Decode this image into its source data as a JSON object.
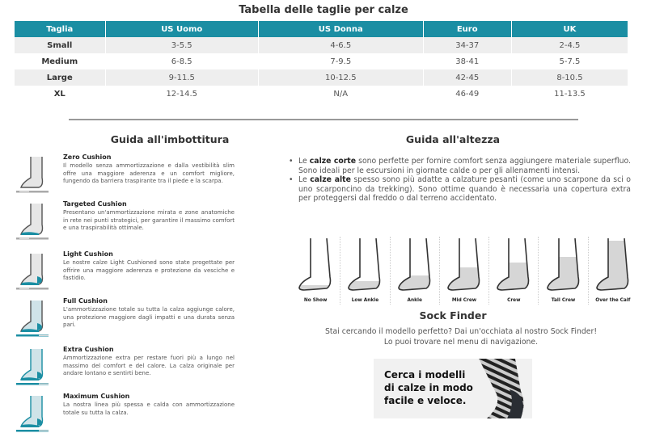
{
  "title": "Tabella delle taglie per calze",
  "table": {
    "headers": [
      "Taglia",
      "US Uomo",
      "US Donna",
      "Euro",
      "UK"
    ],
    "rows": [
      [
        "Small",
        "3-5.5",
        "4-6.5",
        "34-37",
        "2-4.5"
      ],
      [
        "Medium",
        "6-8.5",
        "7-9.5",
        "38-41",
        "5-7.5"
      ],
      [
        "Large",
        "9-11.5",
        "10-12.5",
        "42-45",
        "8-10.5"
      ],
      [
        "XL",
        "12-14.5",
        "N/A",
        "46-49",
        "11-13.5"
      ]
    ]
  },
  "colors": {
    "accent": "#1b8ea3",
    "sock_fill": "#d6d6d6",
    "cushion": "#1b8ea3"
  },
  "cushion": {
    "title": "Guida all'imbottitura",
    "items": [
      {
        "name": "Zero Cushion",
        "desc": "Il modello senza ammortizzazione e dalla vestibilità slim offre una maggiore aderenza e un comfort migliore, fungendo da barriera traspirante tra il piede e la scarpa.",
        "level": 0
      },
      {
        "name": "Targeted Cushion",
        "desc": "Presentano un'ammortizzazione mirata e zone anatomiche in rete nei punti strategici, per garantire il massimo comfort e una traspirabilità ottimale.",
        "level": 1
      },
      {
        "name": "Light Cushion",
        "desc": "Le nostre calze Light Cushioned sono state progettate per offrire una maggiore aderenza e protezione da vesciche e fastidio.",
        "level": 2
      },
      {
        "name": "Full Cushion",
        "desc": "L'ammortizzazione totale su tutta la calza aggiunge calore, una protezione maggiore dagli impatti e una durata senza pari.",
        "level": 3
      },
      {
        "name": "Extra Cushion",
        "desc": "Ammortizzazione extra per restare fuori più a lungo nel massimo del comfort e del calore. La calza originale per andare lontano e sentirti bene.",
        "level": 4
      },
      {
        "name": "Maximum Cushion",
        "desc": "La nostra linea più spessa e calda con ammortizzazione totale su tutta la calza.",
        "level": 5
      }
    ]
  },
  "height": {
    "title": "Guida all'altezza",
    "bullets": [
      {
        "pre": "Le ",
        "bold": "calze corte",
        "post": " sono perfette per fornire comfort senza aggiungere materiale superfluo. Sono ideali per le escursioni in giornate calde o per gli allenamenti intensi."
      },
      {
        "pre": "Le ",
        "bold": "calze alte",
        "post": " spesso sono più adatte a calzature pesanti (come uno scarpone da sci o uno scarponcino da trekking). Sono ottime quando è necessaria una copertura extra per proteggersi dal freddo o dal terreno accidentato."
      }
    ],
    "socks": [
      "No Show",
      "Low Ankle",
      "Ankle",
      "Mid Crew",
      "Crew",
      "Tall Crew",
      "Over the Calf"
    ]
  },
  "finder": {
    "title": "Sock Finder",
    "line1": "Stai cercando il modello perfetto? Dai un'occhiata al nostro Sock Finder!",
    "line2": "Lo puoi trovare nel menu di navigazione.",
    "banner": "Cerca i modelli\ndi calze in modo\nfacile e veloce."
  }
}
